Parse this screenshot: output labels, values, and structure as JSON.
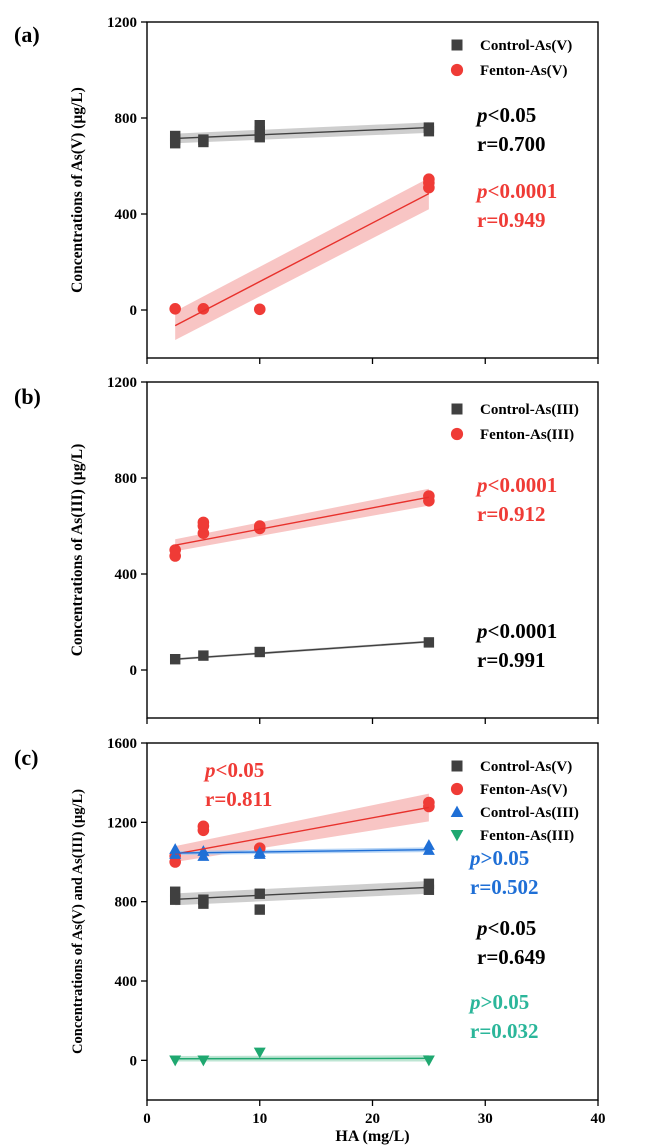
{
  "colors": {
    "black": "#000000",
    "gray": "#404040",
    "red": "#ef3b36",
    "red_line": "#e8312c",
    "red_band": "#f6b2b0",
    "gray_band": "#bdbdbd",
    "blue": "#1f6fd6",
    "blue_band": "#9ec6f2",
    "green": "#1fa870",
    "green_text": "#2bb69a",
    "green_band": "#a8dcc4"
  },
  "chart_data": [
    {
      "type": "scatter",
      "panel_label": "(a)",
      "ylabel": "Concentrations of As(V) (µg/L)",
      "xlabel": "",
      "xlim": [
        0,
        40
      ],
      "ylim": [
        -200,
        1200
      ],
      "yticks": [
        0,
        400,
        800,
        1200
      ],
      "xticks": [
        0,
        10,
        20,
        30,
        40
      ],
      "show_x_ticklabels": false,
      "legend": "top-right",
      "series": [
        {
          "name": "Control-As(V)",
          "marker": "square",
          "color": "#404040",
          "band_color": "#bdbdbd",
          "x": [
            2.5,
            2.5,
            2.5,
            5,
            5,
            10,
            10,
            10,
            25,
            25
          ],
          "y": [
            695,
            710,
            725,
            700,
            710,
            720,
            745,
            770,
            745,
            760
          ],
          "fit": {
            "x": [
              2.5,
              25
            ],
            "y": [
              715,
              760
            ],
            "band": [
              20,
              22
            ]
          }
        },
        {
          "name": "Fenton-As(V)",
          "marker": "circle",
          "color": "#ef3b36",
          "line_color": "#e8312c",
          "band_color": "#f6b2b0",
          "x": [
            2.5,
            5,
            10,
            25,
            25,
            25
          ],
          "y": [
            5,
            5,
            3,
            510,
            530,
            545
          ],
          "fit": {
            "x": [
              2.5,
              25
            ],
            "y": [
              -65,
              485
            ],
            "band": [
              60,
              65
            ]
          }
        }
      ],
      "annotations": [
        {
          "p": "<0.05",
          "r": "r=0.700",
          "color": "#000000"
        },
        {
          "p": "<0.0001",
          "r": "r=0.949",
          "color": "#ef3b36"
        }
      ]
    },
    {
      "type": "scatter",
      "panel_label": "(b)",
      "ylabel": "Concentrations of As(III) (µg/L)",
      "xlabel": "",
      "xlim": [
        0,
        40
      ],
      "ylim": [
        -200,
        1200
      ],
      "yticks": [
        0,
        400,
        800,
        1200
      ],
      "xticks": [
        0,
        10,
        20,
        30,
        40
      ],
      "show_x_ticklabels": false,
      "legend": "top-right",
      "series": [
        {
          "name": "Control-As(III)",
          "marker": "square",
          "color": "#404040",
          "band_color": "#bdbdbd",
          "x": [
            2.5,
            5,
            10,
            25
          ],
          "y": [
            45,
            60,
            75,
            115
          ],
          "fit": {
            "x": [
              2.5,
              25
            ],
            "y": [
              45,
              118
            ],
            "band": [
              5,
              5
            ]
          }
        },
        {
          "name": "Fenton-As(III)",
          "marker": "circle",
          "color": "#ef3b36",
          "line_color": "#e8312c",
          "band_color": "#f6b2b0",
          "x": [
            2.5,
            2.5,
            5,
            5,
            5,
            10,
            10,
            25,
            25
          ],
          "y": [
            475,
            500,
            570,
            600,
            615,
            590,
            600,
            705,
            725
          ],
          "fit": {
            "x": [
              2.5,
              25
            ],
            "y": [
              520,
              720
            ],
            "band": [
              25,
              35
            ]
          }
        }
      ],
      "annotations": [
        {
          "p": "<0.0001",
          "r": "r=0.912",
          "color": "#ef3b36"
        },
        {
          "p": "<0.0001",
          "r": "r=0.991",
          "color": "#000000"
        }
      ]
    },
    {
      "type": "scatter",
      "panel_label": "(c)",
      "ylabel": "Concentrations of As(V) and As(III) (µg/L)",
      "xlabel": "HA (mg/L)",
      "xlim": [
        0,
        40
      ],
      "ylim": [
        -200,
        1600
      ],
      "yticks": [
        0,
        400,
        800,
        1200,
        1600
      ],
      "xticks": [
        0,
        10,
        20,
        30,
        40
      ],
      "show_x_ticklabels": true,
      "legend": "top-right",
      "series": [
        {
          "name": "Control-As(V)",
          "marker": "square",
          "color": "#404040",
          "band_color": "#bdbdbd",
          "x": [
            2.5,
            2.5,
            5,
            5,
            10,
            10,
            25,
            25
          ],
          "y": [
            810,
            850,
            790,
            810,
            760,
            840,
            860,
            890
          ],
          "fit": {
            "x": [
              2.5,
              25
            ],
            "y": [
              812,
              872
            ],
            "band": [
              30,
              32
            ]
          }
        },
        {
          "name": "Fenton-As(V)",
          "marker": "circle",
          "color": "#ef3b36",
          "line_color": "#e8312c",
          "band_color": "#f6b2b0",
          "x": [
            2.5,
            2.5,
            5,
            5,
            10,
            25,
            25
          ],
          "y": [
            1000,
            1030,
            1160,
            1180,
            1070,
            1280,
            1300
          ],
          "fit": {
            "x": [
              2.5,
              25
            ],
            "y": [
              1040,
              1275
            ],
            "band": [
              40,
              70
            ]
          }
        },
        {
          "name": "Control-As(III)",
          "marker": "triangle-up",
          "color": "#1f6fd6",
          "band_color": "#9ec6f2",
          "x": [
            2.5,
            2.5,
            5,
            5,
            10,
            10,
            25,
            25
          ],
          "y": [
            1040,
            1065,
            1030,
            1055,
            1040,
            1050,
            1060,
            1085
          ],
          "fit": {
            "x": [
              2.5,
              25
            ],
            "y": [
              1045,
              1062
            ],
            "band": [
              10,
              12
            ]
          }
        },
        {
          "name": "Fenton-As(III)",
          "marker": "triangle-down",
          "color": "#1fa870",
          "band_color": "#a8dcc4",
          "x": [
            2.5,
            5,
            10,
            25
          ],
          "y": [
            0,
            0,
            40,
            0
          ],
          "fit": {
            "x": [
              2.5,
              25
            ],
            "y": [
              8,
              10
            ],
            "band": [
              14,
              16
            ]
          }
        }
      ],
      "annotations": [
        {
          "p": "<0.05",
          "r": "r=0.811",
          "color": "#ef3b36"
        },
        {
          "p": ">0.05",
          "r": "r=0.502",
          "color": "#1f6fd6"
        },
        {
          "p": "<0.05",
          "r": "r=0.649",
          "color": "#000000"
        },
        {
          "p": ">0.05",
          "r": "r=0.032",
          "color": "#2bb69a"
        }
      ]
    }
  ]
}
